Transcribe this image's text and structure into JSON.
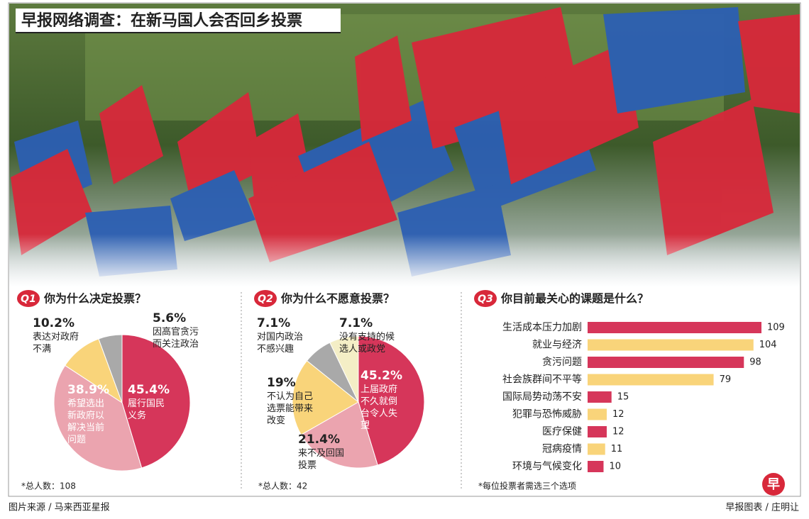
{
  "title": "早报网络调查：在新马国人会否回乡投票",
  "chart_data": [
    {
      "type": "pie",
      "badge": "Q1",
      "title": "你为什么决定投票？",
      "categories": [
        "履行国民义务",
        "希望选出新政府以解决当前问题",
        "表达对政府不满",
        "因高官贪污而关注政治"
      ],
      "values": [
        45.4,
        38.9,
        10.2,
        5.6
      ],
      "value_labels": [
        "45.4%",
        "38.9%",
        "10.2%",
        "5.6%"
      ],
      "colors": [
        "#d6365a",
        "#eba4af",
        "#f9d47a",
        "#a9a9a9"
      ],
      "note": "*总人数：108"
    },
    {
      "type": "pie",
      "badge": "Q2",
      "title": "你为什么不愿意投票？",
      "categories": [
        "上届政府不久就倒台令人失望",
        "来不及回国投票",
        "不认为自己选票能带来改变",
        "对国内政治不感兴趣",
        "没有支持的候选人或政党"
      ],
      "values": [
        45.2,
        21.4,
        19,
        7.1,
        7.1
      ],
      "value_labels": [
        "45.2%",
        "21.4%",
        "19%",
        "7.1%",
        "7.1%"
      ],
      "colors": [
        "#d6365a",
        "#eba4af",
        "#f9d47a",
        "#a9a9a9",
        "#f4eec6"
      ],
      "note": "*总人数：42"
    },
    {
      "type": "bar",
      "badge": "Q3",
      "title": "你目前最关心的课题是什么？",
      "categories": [
        "生活成本压力加剧",
        "就业与经济",
        "贪污问题",
        "社会族群间不平等",
        "国际局势动荡不安",
        "犯罪与恐怖威胁",
        "医疗保健",
        "冠病疫情",
        "环境与气候变化"
      ],
      "values": [
        109,
        104,
        98,
        79,
        15,
        12,
        12,
        11,
        10
      ],
      "colors": [
        "#d6365a",
        "#f9d47a",
        "#d6365a",
        "#f9d47a",
        "#d6365a",
        "#f9d47a",
        "#d6365a",
        "#f9d47a",
        "#d6365a"
      ],
      "note": "*每位投票者需选三个选项"
    }
  ],
  "footer": {
    "source": "图片来源 / 马来西亚星报",
    "credit": "早报图表 / 庄明让",
    "logo": "早"
  }
}
